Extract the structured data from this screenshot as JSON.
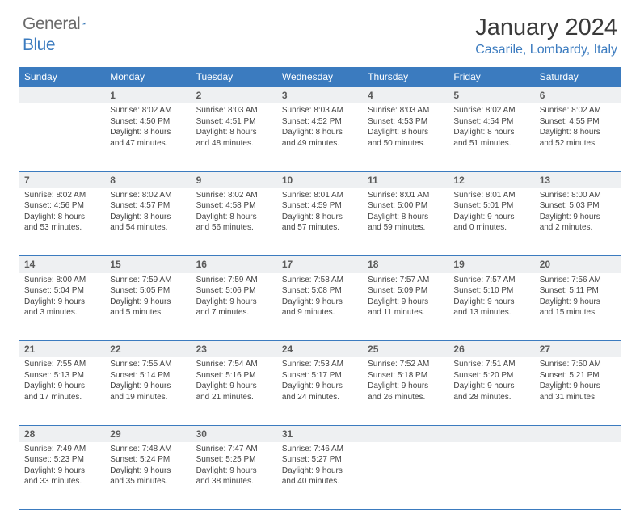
{
  "logo": {
    "g": "General",
    "b": "Blue"
  },
  "title": "January 2024",
  "location": "Casarile, Lombardy, Italy",
  "colors": {
    "accent": "#3b7bbf",
    "header_text": "#ffffff",
    "daynum_bg": "#eef0f2",
    "text": "#444444"
  },
  "weekdays": [
    "Sunday",
    "Monday",
    "Tuesday",
    "Wednesday",
    "Thursday",
    "Friday",
    "Saturday"
  ],
  "weeks": [
    [
      null,
      {
        "n": "1",
        "sr": "8:02 AM",
        "ss": "4:50 PM",
        "dl": "8 hours and 47 minutes."
      },
      {
        "n": "2",
        "sr": "8:03 AM",
        "ss": "4:51 PM",
        "dl": "8 hours and 48 minutes."
      },
      {
        "n": "3",
        "sr": "8:03 AM",
        "ss": "4:52 PM",
        "dl": "8 hours and 49 minutes."
      },
      {
        "n": "4",
        "sr": "8:03 AM",
        "ss": "4:53 PM",
        "dl": "8 hours and 50 minutes."
      },
      {
        "n": "5",
        "sr": "8:02 AM",
        "ss": "4:54 PM",
        "dl": "8 hours and 51 minutes."
      },
      {
        "n": "6",
        "sr": "8:02 AM",
        "ss": "4:55 PM",
        "dl": "8 hours and 52 minutes."
      }
    ],
    [
      {
        "n": "7",
        "sr": "8:02 AM",
        "ss": "4:56 PM",
        "dl": "8 hours and 53 minutes."
      },
      {
        "n": "8",
        "sr": "8:02 AM",
        "ss": "4:57 PM",
        "dl": "8 hours and 54 minutes."
      },
      {
        "n": "9",
        "sr": "8:02 AM",
        "ss": "4:58 PM",
        "dl": "8 hours and 56 minutes."
      },
      {
        "n": "10",
        "sr": "8:01 AM",
        "ss": "4:59 PM",
        "dl": "8 hours and 57 minutes."
      },
      {
        "n": "11",
        "sr": "8:01 AM",
        "ss": "5:00 PM",
        "dl": "8 hours and 59 minutes."
      },
      {
        "n": "12",
        "sr": "8:01 AM",
        "ss": "5:01 PM",
        "dl": "9 hours and 0 minutes."
      },
      {
        "n": "13",
        "sr": "8:00 AM",
        "ss": "5:03 PM",
        "dl": "9 hours and 2 minutes."
      }
    ],
    [
      {
        "n": "14",
        "sr": "8:00 AM",
        "ss": "5:04 PM",
        "dl": "9 hours and 3 minutes."
      },
      {
        "n": "15",
        "sr": "7:59 AM",
        "ss": "5:05 PM",
        "dl": "9 hours and 5 minutes."
      },
      {
        "n": "16",
        "sr": "7:59 AM",
        "ss": "5:06 PM",
        "dl": "9 hours and 7 minutes."
      },
      {
        "n": "17",
        "sr": "7:58 AM",
        "ss": "5:08 PM",
        "dl": "9 hours and 9 minutes."
      },
      {
        "n": "18",
        "sr": "7:57 AM",
        "ss": "5:09 PM",
        "dl": "9 hours and 11 minutes."
      },
      {
        "n": "19",
        "sr": "7:57 AM",
        "ss": "5:10 PM",
        "dl": "9 hours and 13 minutes."
      },
      {
        "n": "20",
        "sr": "7:56 AM",
        "ss": "5:11 PM",
        "dl": "9 hours and 15 minutes."
      }
    ],
    [
      {
        "n": "21",
        "sr": "7:55 AM",
        "ss": "5:13 PM",
        "dl": "9 hours and 17 minutes."
      },
      {
        "n": "22",
        "sr": "7:55 AM",
        "ss": "5:14 PM",
        "dl": "9 hours and 19 minutes."
      },
      {
        "n": "23",
        "sr": "7:54 AM",
        "ss": "5:16 PM",
        "dl": "9 hours and 21 minutes."
      },
      {
        "n": "24",
        "sr": "7:53 AM",
        "ss": "5:17 PM",
        "dl": "9 hours and 24 minutes."
      },
      {
        "n": "25",
        "sr": "7:52 AM",
        "ss": "5:18 PM",
        "dl": "9 hours and 26 minutes."
      },
      {
        "n": "26",
        "sr": "7:51 AM",
        "ss": "5:20 PM",
        "dl": "9 hours and 28 minutes."
      },
      {
        "n": "27",
        "sr": "7:50 AM",
        "ss": "5:21 PM",
        "dl": "9 hours and 31 minutes."
      }
    ],
    [
      {
        "n": "28",
        "sr": "7:49 AM",
        "ss": "5:23 PM",
        "dl": "9 hours and 33 minutes."
      },
      {
        "n": "29",
        "sr": "7:48 AM",
        "ss": "5:24 PM",
        "dl": "9 hours and 35 minutes."
      },
      {
        "n": "30",
        "sr": "7:47 AM",
        "ss": "5:25 PM",
        "dl": "9 hours and 38 minutes."
      },
      {
        "n": "31",
        "sr": "7:46 AM",
        "ss": "5:27 PM",
        "dl": "9 hours and 40 minutes."
      },
      null,
      null,
      null
    ]
  ],
  "labels": {
    "sunrise": "Sunrise:",
    "sunset": "Sunset:",
    "daylight": "Daylight:"
  }
}
